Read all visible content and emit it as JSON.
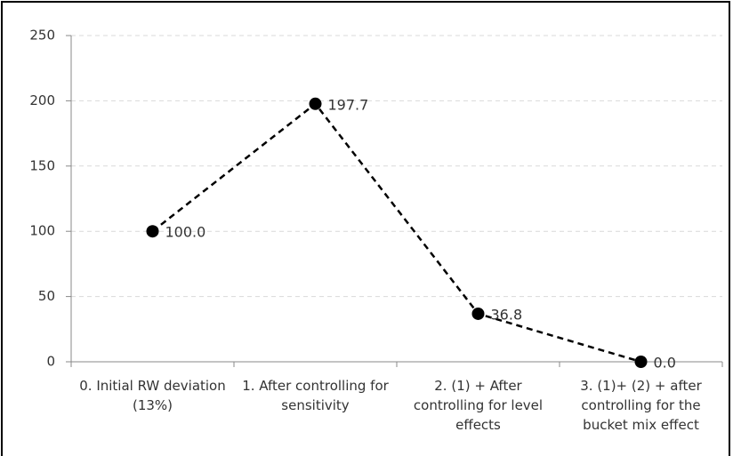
{
  "chart_data": {
    "type": "line",
    "categories": [
      "0. Initial RW deviation (13%)",
      "1. After controlling for sensitivity",
      "2. (1) + After controlling for level effects",
      "3. (1)+ (2) + after controlling for the bucket mix effect"
    ],
    "values": [
      100,
      197.7,
      36.8,
      0
    ],
    "value_labels": [
      "100.0",
      "197.7",
      "36.8",
      "0.0"
    ],
    "color": "#000000",
    "ylim": [
      0,
      250
    ],
    "yticks": [
      0,
      50,
      100,
      150,
      200,
      250
    ],
    "grid": true
  }
}
